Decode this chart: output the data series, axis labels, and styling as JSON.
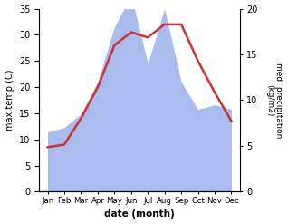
{
  "months": [
    "Jan",
    "Feb",
    "Mar",
    "Apr",
    "May",
    "Jun",
    "Jul",
    "Aug",
    "Sep",
    "Oct",
    "Nov",
    "Dec"
  ],
  "month_positions": [
    0,
    1,
    2,
    3,
    4,
    5,
    6,
    7,
    8,
    9,
    10,
    11
  ],
  "temperature": [
    8.5,
    9.0,
    14.0,
    20.0,
    28.0,
    30.5,
    29.5,
    32.0,
    32.0,
    25.0,
    19.0,
    13.5
  ],
  "precipitation": [
    6.5,
    7.0,
    8.5,
    12.0,
    18.0,
    21.5,
    14.0,
    20.0,
    12.0,
    9.0,
    9.5,
    9.0
  ],
  "temp_color": "#cc3333",
  "precip_color": "#aabbee",
  "left_ylim": [
    0,
    35
  ],
  "left_yticks": [
    0,
    5,
    10,
    15,
    20,
    25,
    30,
    35
  ],
  "right_ylim": [
    0,
    23.33
  ],
  "right_yticks": [
    0,
    5,
    10,
    15,
    20
  ],
  "scale_factor": 1.75,
  "xlabel": "date (month)",
  "ylabel_left": "max temp (C)",
  "ylabel_right": "med. precipitation\n(kg/m2)",
  "background_color": "#ffffff",
  "fig_facecolor": "#ffffff"
}
